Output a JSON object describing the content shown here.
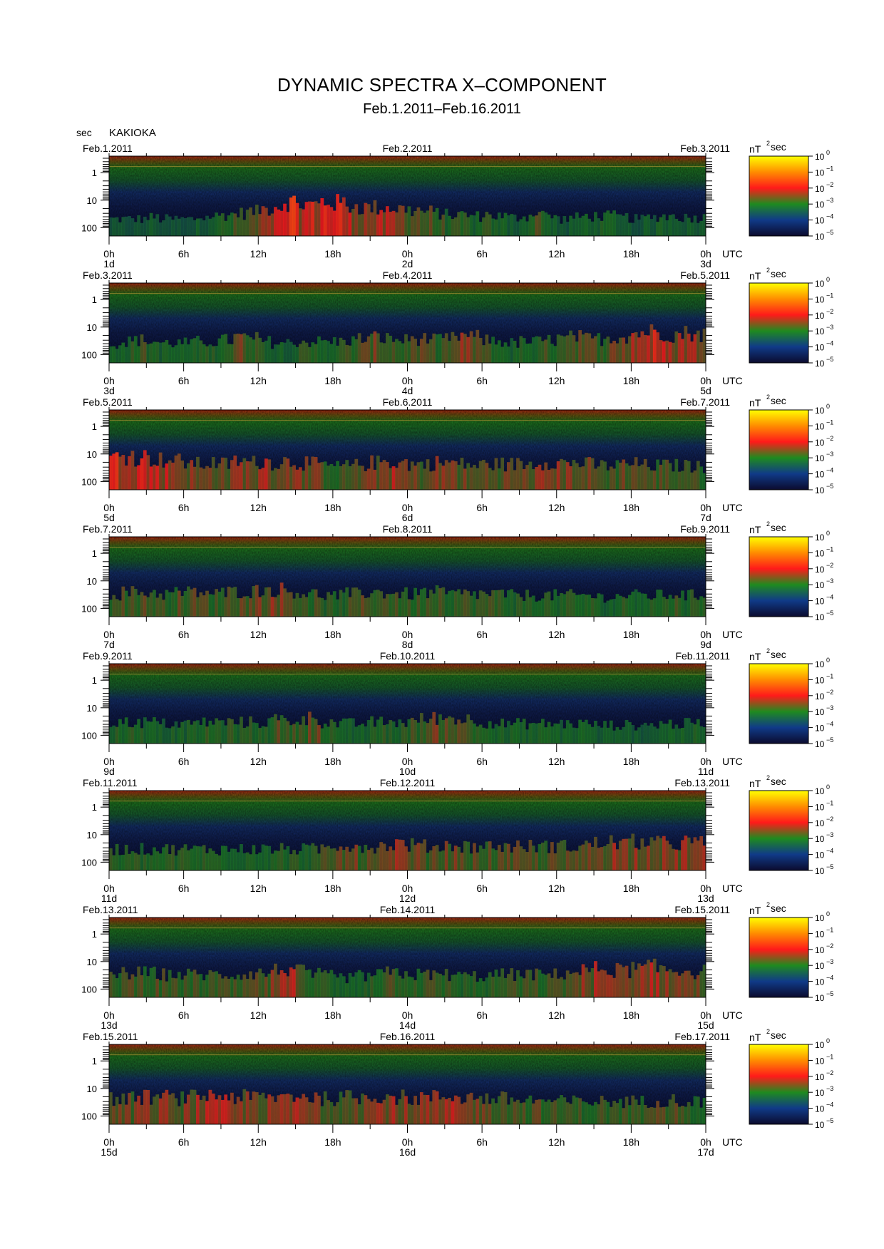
{
  "title": "DYNAMIC SPECTRA X–COMPONENT",
  "subtitle": "Feb.1.2011–Feb.16.2011",
  "station": "KAKIOKA",
  "y_unit_label": "sec",
  "colorbar": {
    "unit_main": "nT",
    "unit_exp": "2",
    "unit_suffix": "sec",
    "ticks": [
      {
        "base": "10",
        "exp": "0"
      },
      {
        "base": "10",
        "exp": "−1"
      },
      {
        "base": "10",
        "exp": "−2"
      },
      {
        "base": "10",
        "exp": "−3"
      },
      {
        "base": "10",
        "exp": "−4"
      },
      {
        "base": "10",
        "exp": "−5"
      }
    ],
    "stops": [
      "#0b0b2e",
      "#103a88",
      "#1f8a1f",
      "#ff1a1a",
      "#ff8c00",
      "#ffff00"
    ]
  },
  "time_tick_labels": [
    "0h",
    "6h",
    "12h",
    "18h",
    "0h",
    "6h",
    "12h",
    "18h",
    "0h"
  ],
  "utc_label": "UTC",
  "chart_data": {
    "type": "heatmap",
    "x_axis": "time (UTC), 2 days per panel",
    "y_axis": "period (sec), log scale",
    "y_ticks": [
      "1",
      "10",
      "100"
    ],
    "color_axis": "power (nT^2 sec), log scale",
    "color_range": [
      1e-05,
      1
    ],
    "panels": [
      {
        "start_date": "Feb.1.2011",
        "mid_date": "Feb.2.2011",
        "end_date": "Feb.3.2011",
        "day_labels": [
          "1d",
          "2d",
          "3d"
        ],
        "activity": [
          0.2,
          0.2,
          0.2,
          0.25,
          0.2,
          0.2,
          0.2,
          0.25,
          0.3,
          0.35,
          0.4,
          0.45,
          0.55,
          0.65,
          0.8,
          0.7,
          0.7,
          0.8,
          0.75,
          0.65,
          0.6,
          0.6,
          0.6,
          0.55,
          0.5,
          0.45,
          0.4,
          0.35,
          0.35,
          0.3,
          0.35,
          0.3,
          0.25,
          0.3,
          0.45,
          0.3,
          0.2,
          0.25,
          0.3,
          0.3,
          0.3,
          0.25,
          0.2,
          0.25,
          0.3,
          0.3,
          0.25,
          0.25
        ]
      },
      {
        "start_date": "Feb.3.2011",
        "mid_date": "Feb.4.2011",
        "end_date": "Feb.5.2011",
        "day_labels": [
          "3d",
          "4d",
          "5d"
        ],
        "activity": [
          0.3,
          0.35,
          0.4,
          0.35,
          0.3,
          0.3,
          0.3,
          0.35,
          0.35,
          0.4,
          0.5,
          0.45,
          0.35,
          0.3,
          0.3,
          0.35,
          0.35,
          0.35,
          0.35,
          0.4,
          0.45,
          0.5,
          0.45,
          0.4,
          0.45,
          0.45,
          0.4,
          0.45,
          0.55,
          0.5,
          0.4,
          0.35,
          0.3,
          0.35,
          0.35,
          0.4,
          0.45,
          0.5,
          0.45,
          0.45,
          0.5,
          0.55,
          0.65,
          0.7,
          0.65,
          0.6,
          0.65,
          0.6
        ]
      },
      {
        "start_date": "Feb.5.2011",
        "mid_date": "Feb.6.2011",
        "end_date": "Feb.7.2011",
        "day_labels": [
          "5d",
          "6d",
          "7d"
        ],
        "activity": [
          0.75,
          0.8,
          0.75,
          0.7,
          0.65,
          0.6,
          0.55,
          0.5,
          0.55,
          0.5,
          0.6,
          0.55,
          0.6,
          0.55,
          0.6,
          0.55,
          0.5,
          0.45,
          0.4,
          0.45,
          0.5,
          0.55,
          0.6,
          0.55,
          0.5,
          0.5,
          0.55,
          0.55,
          0.5,
          0.45,
          0.5,
          0.5,
          0.5,
          0.5,
          0.55,
          0.6,
          0.55,
          0.55,
          0.5,
          0.45,
          0.45,
          0.5,
          0.5,
          0.45,
          0.45,
          0.45,
          0.45,
          0.4
        ]
      },
      {
        "start_date": "Feb.7.2011",
        "mid_date": "Feb.8.2011",
        "end_date": "Feb.9.2011",
        "day_labels": [
          "7d",
          "8d",
          "9d"
        ],
        "activity": [
          0.4,
          0.45,
          0.45,
          0.45,
          0.4,
          0.45,
          0.45,
          0.45,
          0.4,
          0.45,
          0.5,
          0.5,
          0.55,
          0.55,
          0.5,
          0.45,
          0.4,
          0.35,
          0.35,
          0.4,
          0.45,
          0.45,
          0.45,
          0.4,
          0.4,
          0.45,
          0.45,
          0.4,
          0.4,
          0.4,
          0.4,
          0.4,
          0.35,
          0.35,
          0.35,
          0.35,
          0.35,
          0.35,
          0.35,
          0.3,
          0.3,
          0.35,
          0.35,
          0.35,
          0.35,
          0.4,
          0.35,
          0.35
        ]
      },
      {
        "start_date": "Feb.9.2011",
        "mid_date": "Feb.10.2011",
        "end_date": "Feb.11.2011",
        "day_labels": [
          "9d",
          "10d",
          "11d"
        ],
        "activity": [
          0.35,
          0.35,
          0.35,
          0.35,
          0.3,
          0.3,
          0.3,
          0.35,
          0.35,
          0.35,
          0.35,
          0.35,
          0.35,
          0.45,
          0.4,
          0.45,
          0.5,
          0.35,
          0.3,
          0.3,
          0.3,
          0.35,
          0.35,
          0.35,
          0.4,
          0.45,
          0.5,
          0.5,
          0.45,
          0.4,
          0.35,
          0.3,
          0.3,
          0.3,
          0.3,
          0.3,
          0.3,
          0.3,
          0.3,
          0.25,
          0.25,
          0.25,
          0.25,
          0.25,
          0.3,
          0.3,
          0.3,
          0.3
        ]
      },
      {
        "start_date": "Feb.11.2011",
        "mid_date": "Feb.12.2011",
        "end_date": "Feb.13.2011",
        "day_labels": [
          "11d",
          "12d",
          "13d"
        ],
        "activity": [
          0.35,
          0.35,
          0.35,
          0.35,
          0.35,
          0.35,
          0.35,
          0.35,
          0.35,
          0.35,
          0.35,
          0.35,
          0.35,
          0.35,
          0.35,
          0.35,
          0.35,
          0.4,
          0.5,
          0.5,
          0.45,
          0.45,
          0.5,
          0.55,
          0.5,
          0.45,
          0.45,
          0.5,
          0.45,
          0.45,
          0.45,
          0.45,
          0.45,
          0.45,
          0.45,
          0.45,
          0.45,
          0.45,
          0.5,
          0.55,
          0.6,
          0.55,
          0.6,
          0.6,
          0.55,
          0.55,
          0.6,
          0.55
        ]
      },
      {
        "start_date": "Feb.13.2011",
        "mid_date": "Feb.14.2011",
        "end_date": "Feb.15.2011",
        "day_labels": [
          "13d",
          "14d",
          "15d"
        ],
        "activity": [
          0.4,
          0.45,
          0.45,
          0.45,
          0.4,
          0.4,
          0.4,
          0.4,
          0.4,
          0.4,
          0.4,
          0.45,
          0.45,
          0.55,
          0.6,
          0.5,
          0.4,
          0.35,
          0.3,
          0.3,
          0.35,
          0.4,
          0.45,
          0.45,
          0.4,
          0.4,
          0.4,
          0.4,
          0.35,
          0.35,
          0.35,
          0.4,
          0.4,
          0.4,
          0.4,
          0.4,
          0.45,
          0.5,
          0.55,
          0.6,
          0.55,
          0.55,
          0.6,
          0.65,
          0.6,
          0.55,
          0.55,
          0.5
        ]
      },
      {
        "start_date": "Feb.15.2011",
        "mid_date": "Feb.16.2011",
        "end_date": "Feb.17.2011",
        "day_labels": [
          "15d",
          "16d",
          "17d"
        ],
        "activity": [
          0.5,
          0.5,
          0.55,
          0.55,
          0.55,
          0.5,
          0.55,
          0.6,
          0.6,
          0.6,
          0.55,
          0.55,
          0.55,
          0.55,
          0.6,
          0.6,
          0.55,
          0.5,
          0.5,
          0.55,
          0.55,
          0.6,
          0.6,
          0.55,
          0.5,
          0.55,
          0.55,
          0.6,
          0.55,
          0.55,
          0.5,
          0.5,
          0.45,
          0.45,
          0.45,
          0.4,
          0.4,
          0.4,
          0.4,
          0.4,
          0.4,
          0.4,
          0.4,
          0.4,
          0.45,
          0.45,
          0.4,
          0.4
        ]
      }
    ]
  }
}
